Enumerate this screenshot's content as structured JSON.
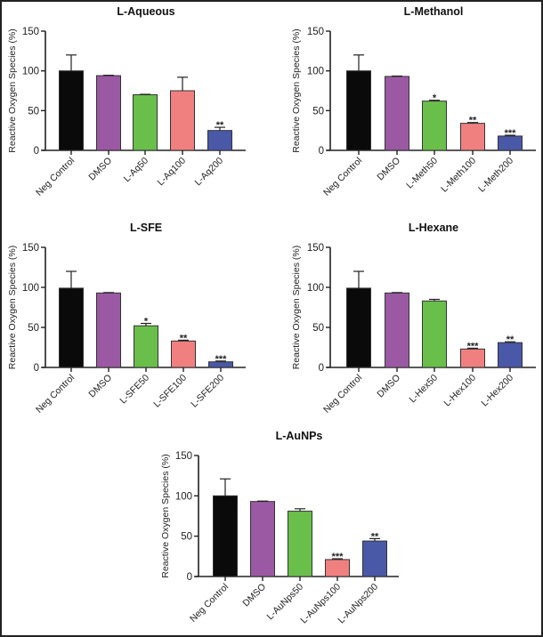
{
  "chart_data": [
    {
      "type": "bar",
      "title": "L-Aqueous",
      "xlabel": "",
      "ylabel": "Reactive Oxygen Species (%)",
      "ylim": [
        0,
        150
      ],
      "yticks": [
        0,
        50,
        100,
        150
      ],
      "categories": [
        "Neg Control",
        "DMSO",
        "L-Aq50",
        "L-Aq100",
        "L-Aq200"
      ],
      "values": [
        100,
        94,
        70,
        75,
        25
      ],
      "error_upper": [
        120,
        94.5,
        70.5,
        92,
        29
      ],
      "significance": [
        "",
        "",
        "",
        "",
        "**"
      ],
      "colors": [
        "#0a0a0a",
        "#9b59a3",
        "#6abf4b",
        "#f08080",
        "#4a58a8"
      ],
      "grid": false
    },
    {
      "type": "bar",
      "title": "L-Methanol",
      "xlabel": "",
      "ylabel": "Reactive Oxygen Species (%)",
      "ylim": [
        0,
        150
      ],
      "yticks": [
        0,
        50,
        100,
        150
      ],
      "categories": [
        "Neg Control",
        "DMSO",
        "L-Meth50",
        "L-Meth100",
        "L-Meth200"
      ],
      "values": [
        100,
        93,
        62,
        34,
        18
      ],
      "error_upper": [
        120,
        93.5,
        63,
        35,
        19
      ],
      "significance": [
        "",
        "",
        "*",
        "**",
        "***"
      ],
      "colors": [
        "#0a0a0a",
        "#9b59a3",
        "#6abf4b",
        "#f08080",
        "#4a58a8"
      ],
      "grid": false
    },
    {
      "type": "bar",
      "title": "L-SFE",
      "xlabel": "",
      "ylabel": "Reactive Oxygen Species (%)",
      "ylim": [
        0,
        150
      ],
      "yticks": [
        0,
        50,
        100,
        150
      ],
      "categories": [
        "Neg Control",
        "DMSO",
        "L-SFE50",
        "L-SFE100",
        "L-SFE200"
      ],
      "values": [
        99,
        93,
        52,
        33,
        7
      ],
      "error_upper": [
        120,
        93.5,
        55,
        34,
        8
      ],
      "significance": [
        "",
        "",
        "*",
        "**",
        "***"
      ],
      "colors": [
        "#0a0a0a",
        "#9b59a3",
        "#6abf4b",
        "#f08080",
        "#4a58a8"
      ],
      "grid": false
    },
    {
      "type": "bar",
      "title": "L-Hexane",
      "xlabel": "",
      "ylabel": "Reactive Oxygen Species (%)",
      "ylim": [
        0,
        150
      ],
      "yticks": [
        0,
        50,
        100,
        150
      ],
      "categories": [
        "Neg Control",
        "DMSO",
        "L-Hex50",
        "L-Hex100",
        "L-Hex200"
      ],
      "values": [
        99,
        93,
        83,
        23,
        31
      ],
      "error_upper": [
        120,
        93.5,
        85,
        24,
        32
      ],
      "significance": [
        "",
        "",
        "",
        "***",
        "**"
      ],
      "colors": [
        "#0a0a0a",
        "#9b59a3",
        "#6abf4b",
        "#f08080",
        "#4a58a8"
      ],
      "grid": false
    },
    {
      "type": "bar",
      "title": "L-AuNPs",
      "xlabel": "",
      "ylabel": "Reactive Oxygen Species (%)",
      "ylim": [
        0,
        150
      ],
      "yticks": [
        0,
        50,
        100,
        150
      ],
      "categories": [
        "Neg Control",
        "DMSO",
        "L-AuNps50",
        "L-AuNps100",
        "L-AuNps200"
      ],
      "values": [
        100,
        93,
        81,
        21,
        44
      ],
      "error_upper": [
        121,
        93.5,
        84,
        22,
        47
      ],
      "significance": [
        "",
        "",
        "",
        "***",
        "**"
      ],
      "colors": [
        "#0a0a0a",
        "#9b59a3",
        "#6abf4b",
        "#f08080",
        "#4a58a8"
      ],
      "grid": false
    }
  ]
}
